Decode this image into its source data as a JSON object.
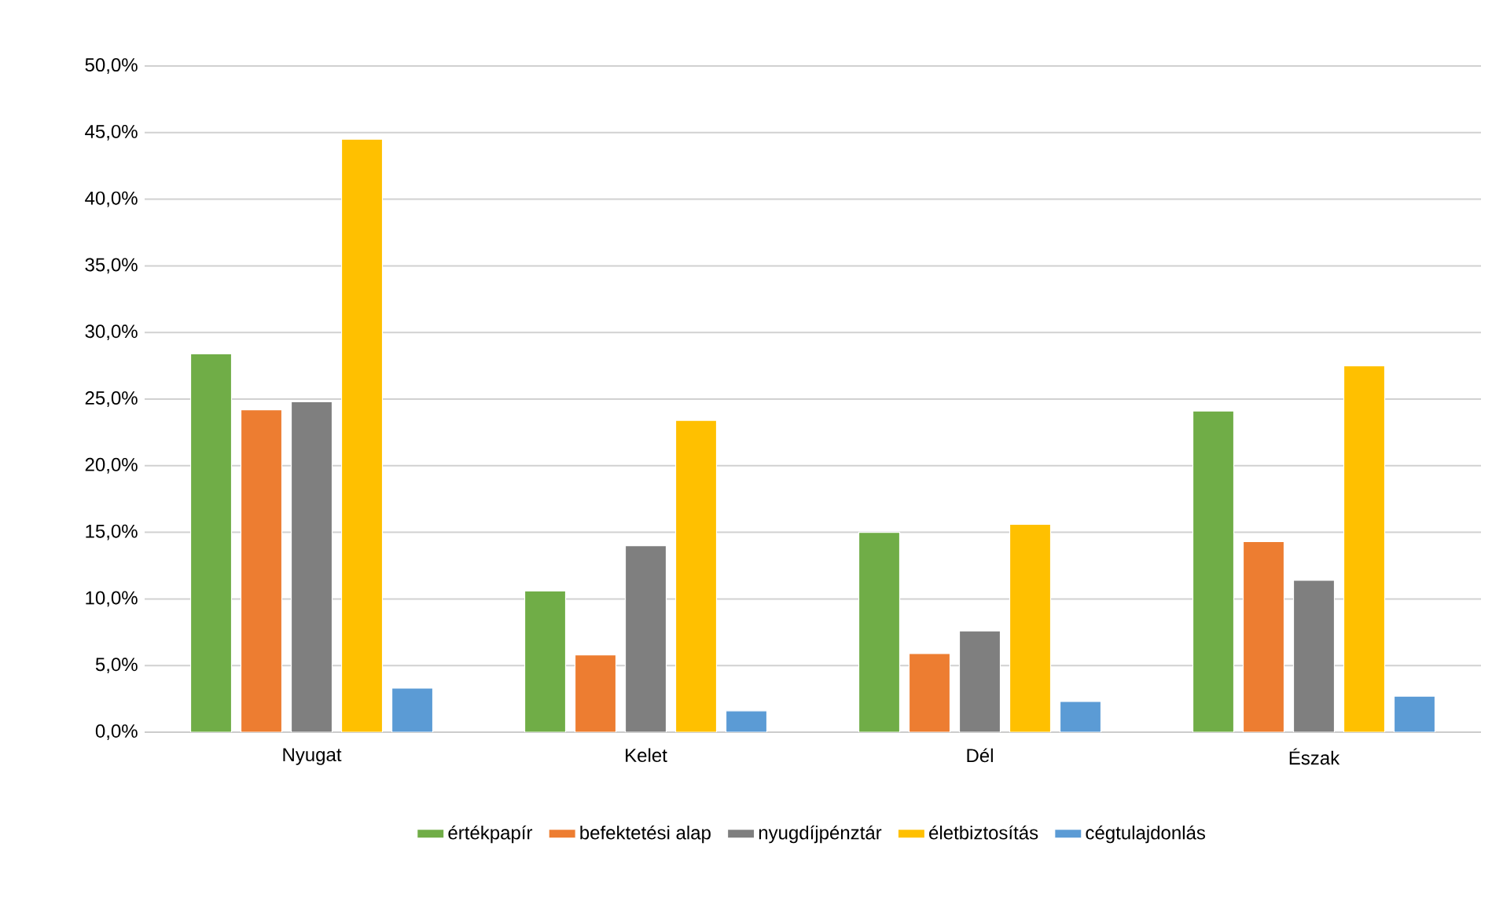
{
  "chart_data": {
    "type": "bar",
    "categories": [
      "Nyugat",
      "Kelet",
      "Dél",
      "Észak"
    ],
    "series": [
      {
        "name": "értékpapír",
        "color": "#70ad47",
        "values": [
          28.4,
          10.6,
          15.0,
          24.1
        ]
      },
      {
        "name": "befektetési alap",
        "color": "#ed7d31",
        "values": [
          24.2,
          5.8,
          5.9,
          14.3
        ]
      },
      {
        "name": "nyugdíjpénztár",
        "color": "#7f7f7f",
        "values": [
          24.8,
          14.0,
          7.6,
          11.4
        ]
      },
      {
        "name": "életbiztosítás",
        "color": "#ffc000",
        "values": [
          44.5,
          23.4,
          15.6,
          27.5
        ]
      },
      {
        "name": "cégtulajdonlás",
        "color": "#5b9bd5",
        "values": [
          3.3,
          1.6,
          2.3,
          2.7
        ]
      }
    ],
    "ylim": [
      0,
      50
    ],
    "yticks": [
      {
        "value": 0,
        "label": "0,0%"
      },
      {
        "value": 5,
        "label": "5,0%"
      },
      {
        "value": 10,
        "label": "10,0%"
      },
      {
        "value": 15,
        "label": "15,0%"
      },
      {
        "value": 20,
        "label": "20,0%"
      },
      {
        "value": 25,
        "label": "25,0%"
      },
      {
        "value": 30,
        "label": "30,0%"
      },
      {
        "value": 35,
        "label": "35,0%"
      },
      {
        "value": 40,
        "label": "40,0%"
      },
      {
        "value": 45,
        "label": "45,0%"
      },
      {
        "value": 50,
        "label": "50,0%"
      }
    ],
    "grid": "y",
    "legend": "bottom"
  }
}
